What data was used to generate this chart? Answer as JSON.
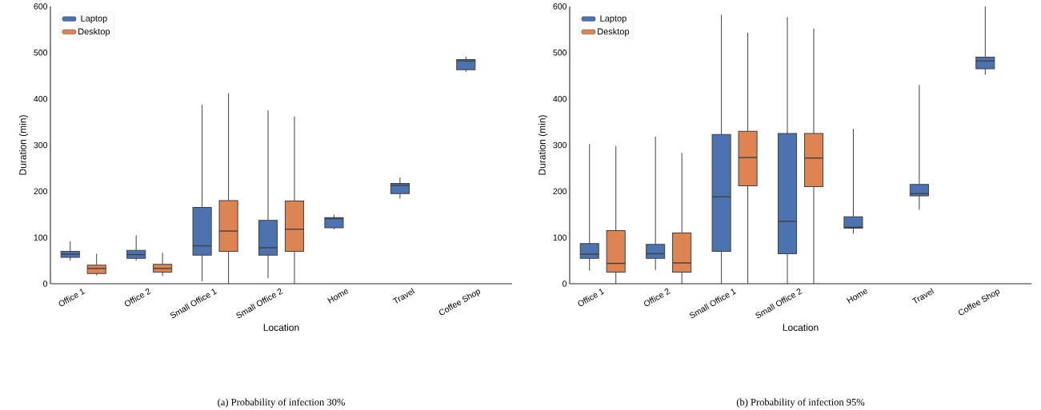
{
  "chart_data": [
    {
      "type": "box",
      "xlabel": "Location",
      "ylabel": "Duration (min)",
      "annotations": [
        "(a) Probability of infection 30%"
      ],
      "categories": [
        "Office 1",
        "Office 2",
        "Small Office 1",
        "Small Office 2",
        "Home",
        "Travel",
        "Coffee Shop"
      ],
      "ylim": [
        0,
        600
      ],
      "yticks": [
        0,
        100,
        200,
        300,
        400,
        500,
        600
      ],
      "legend": "top left",
      "series": [
        {
          "name": "Laptop",
          "color": "#4c72b0",
          "boxes": [
            {
              "low": 50,
              "q1": 57,
              "median": 64,
              "q3": 70,
              "high": 92
            },
            {
              "low": 50,
              "q1": 55,
              "median": 63,
              "q3": 72,
              "high": 105
            },
            {
              "low": 5,
              "q1": 62,
              "median": 82,
              "q3": 165,
              "high": 387
            },
            {
              "low": 12,
              "q1": 62,
              "median": 78,
              "q3": 137,
              "high": 375
            },
            {
              "low": 117,
              "q1": 121,
              "median": 141,
              "q3": 143,
              "high": 149
            },
            {
              "low": 184,
              "q1": 195,
              "median": 213,
              "q3": 217,
              "high": 230
            },
            {
              "low": 458,
              "q1": 463,
              "median": 482,
              "q3": 485,
              "high": 491
            }
          ]
        },
        {
          "name": "Desktop",
          "color": "#dd8452",
          "boxes": [
            {
              "low": 18,
              "q1": 22,
              "median": 33,
              "q3": 40,
              "high": 65
            },
            {
              "low": 17,
              "q1": 25,
              "median": 33,
              "q3": 42,
              "high": 67
            },
            {
              "low": 0,
              "q1": 70,
              "median": 114,
              "q3": 180,
              "high": 412
            },
            {
              "low": 0,
              "q1": 70,
              "median": 118,
              "q3": 179,
              "high": 362
            },
            null,
            null,
            null
          ]
        }
      ]
    },
    {
      "type": "box",
      "xlabel": "Location",
      "ylabel": "Duration (min)",
      "annotations": [
        "(b) Probability of infection 95%"
      ],
      "categories": [
        "Office 1",
        "Office 2",
        "Small Office 1",
        "Small Office 2",
        "Home",
        "Travel",
        "Coffee Shop"
      ],
      "ylim": [
        0,
        600
      ],
      "yticks": [
        0,
        100,
        200,
        300,
        400,
        500,
        600
      ],
      "legend": "top left",
      "series": [
        {
          "name": "Laptop",
          "color": "#4c72b0",
          "boxes": [
            {
              "low": 28,
              "q1": 55,
              "median": 64,
              "q3": 87,
              "high": 302
            },
            {
              "low": 30,
              "q1": 55,
              "median": 65,
              "q3": 85,
              "high": 318
            },
            {
              "low": 0,
              "q1": 70,
              "median": 188,
              "q3": 323,
              "high": 582
            },
            {
              "low": 0,
              "q1": 65,
              "median": 135,
              "q3": 325,
              "high": 577
            },
            {
              "low": 108,
              "q1": 120,
              "median": 122,
              "q3": 145,
              "high": 335
            },
            {
              "low": 160,
              "q1": 190,
              "median": 195,
              "q3": 215,
              "high": 430
            },
            {
              "low": 452,
              "q1": 465,
              "median": 482,
              "q3": 490,
              "high": 600
            }
          ]
        },
        {
          "name": "Desktop",
          "color": "#dd8452",
          "boxes": [
            {
              "low": 0,
              "q1": 25,
              "median": 44,
              "q3": 115,
              "high": 298
            },
            {
              "low": 0,
              "q1": 25,
              "median": 45,
              "q3": 110,
              "high": 283
            },
            {
              "low": 0,
              "q1": 212,
              "median": 273,
              "q3": 330,
              "high": 543
            },
            {
              "low": 0,
              "q1": 210,
              "median": 272,
              "q3": 325,
              "high": 552
            },
            null,
            null,
            null
          ]
        }
      ]
    }
  ]
}
